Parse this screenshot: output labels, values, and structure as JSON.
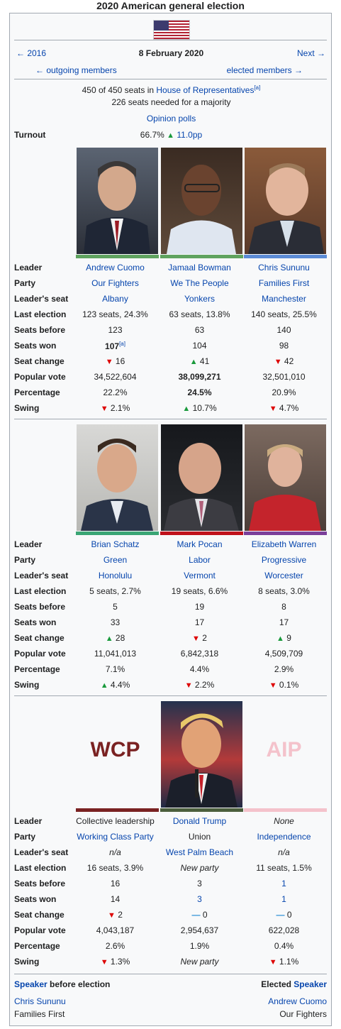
{
  "title": "2020 American general election",
  "nav": {
    "prev": "← 2016",
    "date": "8 February 2020",
    "next": "Next →",
    "outgoing": "← outgoing members",
    "elected": "elected members →"
  },
  "summary": {
    "seats_prefix": "450 of 450 seats in ",
    "seats_link": "House of Representatives",
    "seats_note": "[a]",
    "majority": "226 seats needed for a majority",
    "polls": "Opinion polls"
  },
  "turnout": {
    "label": "Turnout",
    "value": "66.7% ",
    "arrow": "▲",
    "change": " 11.0pp"
  },
  "row_labels": [
    "Leader",
    "Party",
    "Leader's seat",
    "Last election",
    "Seats before",
    "Seats won",
    "Seat change",
    "Popular vote",
    "Percentage",
    "Swing"
  ],
  "groups": [
    {
      "parties": [
        {
          "color": "#5fa35f",
          "leader": "Andrew Cuomo",
          "party": "Our Fighters",
          "seat": "Albany",
          "last": "123 seats, 24.3%",
          "before": "123",
          "won": "107",
          "won_note": "[a]",
          "change_arrow": "▼",
          "change": " 16",
          "vote": "34,522,604",
          "pct": "22.2%",
          "swing_arrow": "▼",
          "swing": " 2.1%"
        },
        {
          "color": "#5fa35f",
          "leader": "Jamaal Bowman",
          "party": "We The People",
          "seat": "Yonkers",
          "last": "63 seats, 13.8%",
          "before": "63",
          "won": "104",
          "won_note": "",
          "change_arrow": "▲",
          "change": " 41",
          "vote": "38,099,271",
          "pct": "24.5%",
          "swing_arrow": "▲",
          "swing": " 10.7%"
        },
        {
          "color": "#5b8bd6",
          "leader": "Chris Sununu",
          "party": "Families First",
          "seat": "Manchester",
          "last": "140 seats, 25.5%",
          "before": "140",
          "won": "98",
          "won_note": "",
          "change_arrow": "▼",
          "change": " 42",
          "vote": "32,501,010",
          "pct": "20.9%",
          "swing_arrow": "▼",
          "swing": " 4.7%"
        }
      ]
    },
    {
      "parties": [
        {
          "color": "#3aa574",
          "leader": "Brian Schatz",
          "party": "Green",
          "seat": "Honolulu",
          "last": "5 seats, 2.7%",
          "before": "5",
          "won": "33",
          "won_note": "",
          "change_arrow": "▲",
          "change": " 28",
          "vote": "11,041,013",
          "pct": "7.1%",
          "swing_arrow": "▲",
          "swing": " 4.4%"
        },
        {
          "color": "#c0111b",
          "leader": "Mark Pocan",
          "party": "Labor",
          "seat": "Vermont",
          "last": "19 seats, 6.6%",
          "before": "19",
          "won": "17",
          "won_note": "",
          "change_arrow": "▼",
          "change": " 2",
          "vote": "6,842,318",
          "pct": "4.4%",
          "swing_arrow": "▼",
          "swing": " 2.2%"
        },
        {
          "color": "#7b3f9a",
          "leader": "Elizabeth Warren",
          "party": "Progressive",
          "seat": "Worcester",
          "last": "8 seats, 3.0%",
          "before": "8",
          "won": "17",
          "won_note": "",
          "change_arrow": "▲",
          "change": " 9",
          "vote": "4,509,709",
          "pct": "2.9%",
          "swing_arrow": "▼",
          "swing": " 0.1%"
        }
      ]
    },
    {
      "parties": [
        {
          "color": "#7a2222",
          "logo": "WCP",
          "leader": "Collective leadership",
          "party": "Working Class Party",
          "seat": "n/a",
          "last": "16 seats, 3.9%",
          "before": "16",
          "won": "14",
          "won_note": "",
          "change_arrow": "▼",
          "change": " 2",
          "vote": "4,043,187",
          "pct": "2.6%",
          "swing_arrow": "▼",
          "swing": " 1.3%"
        },
        {
          "color": "#4b5e3c",
          "leader": "Donald Trump",
          "party": "Union",
          "seat": "West Palm Beach",
          "last": "New party",
          "before": "3",
          "won": "3",
          "won_note": "",
          "change_arrow": "—",
          "change": " 0",
          "vote": "2,954,637",
          "pct": "1.9%",
          "swing_arrow": "",
          "swing": "New party"
        },
        {
          "color": "#f4c2cb",
          "logo": "AIP",
          "leader": "None",
          "party": "Independence",
          "seat": "n/a",
          "last": "11 seats, 1.5%",
          "before": "1",
          "won": "1",
          "won_note": "",
          "change_arrow": "—",
          "change": " 0",
          "vote": "622,028",
          "pct": "0.4%",
          "swing_arrow": "▼",
          "swing": " 1.1%"
        }
      ]
    }
  ],
  "footer": {
    "speaker_link": "Speaker",
    "before_text": " before election",
    "elected_text": "Elected ",
    "left_name": "Chris Sununu",
    "left_party": "Families First",
    "right_name": "Andrew Cuomo",
    "right_party": "Our Fighters"
  }
}
